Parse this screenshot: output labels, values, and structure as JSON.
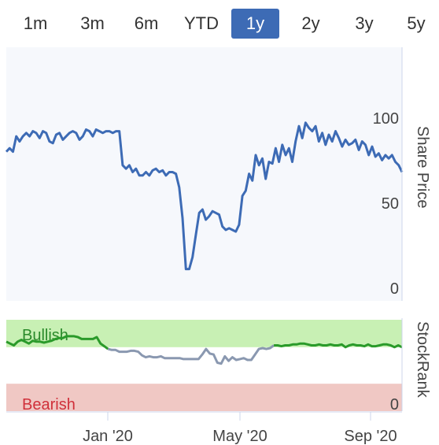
{
  "range_tabs": [
    {
      "label": "1m",
      "active": false
    },
    {
      "label": "3m",
      "active": false
    },
    {
      "label": "6m",
      "active": false
    },
    {
      "label": "YTD",
      "active": false
    },
    {
      "label": "1y",
      "active": true
    },
    {
      "label": "2y",
      "active": false
    },
    {
      "label": "3y",
      "active": false
    },
    {
      "label": "5y",
      "active": false
    }
  ],
  "colors": {
    "accent": "#3d6bb5",
    "price_line": "#3d6bb5",
    "bullish_band": "#c8f0b4",
    "bearish_band": "#f0c8c4",
    "bullish_line": "#2a9a2a",
    "neutral_line": "#8a98b0",
    "bearish_text": "#d0303a",
    "bullish_text": "#2a8a2a"
  },
  "chart_data": [
    {
      "type": "line",
      "ylabel": "Share Price",
      "ylim": [
        0,
        100
      ],
      "yticks": [
        "100",
        "50",
        "0"
      ],
      "series": [
        {
          "values": [
            84,
            86,
            84,
            93,
            90,
            93,
            95,
            93,
            96,
            95,
            92,
            96,
            95,
            90,
            89,
            94,
            95,
            91,
            93,
            95,
            96,
            95,
            91,
            93,
            97,
            96,
            93,
            97,
            96,
            95,
            96,
            96,
            95,
            96,
            96,
            76,
            74,
            76,
            72,
            74,
            70,
            70,
            72,
            70,
            73,
            74,
            72,
            73,
            70,
            72,
            72,
            71,
            63,
            45,
            15,
            15,
            22,
            35,
            48,
            50,
            44,
            46,
            49,
            48,
            47,
            40,
            38,
            39,
            38,
            37,
            41,
            58,
            61,
            71,
            67,
            82,
            76,
            80,
            68,
            78,
            77,
            86,
            78,
            88,
            82,
            86,
            78,
            90,
            99,
            92,
            101,
            98,
            96,
            99,
            90,
            95,
            88,
            94,
            90,
            96,
            92,
            87,
            91,
            88,
            89,
            91,
            85,
            90,
            88,
            82,
            87,
            81,
            83,
            79,
            82,
            80,
            82,
            78,
            76,
            72
          ]
        }
      ]
    },
    {
      "type": "line",
      "ylabel": "StockRank",
      "ylim": [
        0,
        100
      ],
      "yticks": [
        "0"
      ],
      "bands": [
        {
          "label": "Bullish",
          "from": 70,
          "to": 100
        },
        {
          "label": "Bearish",
          "from": 0,
          "to": 30
        }
      ],
      "xticks": [
        "Jan '20",
        "May '20",
        "Sep '20"
      ],
      "series": [
        {
          "values": [
            76,
            74,
            72,
            76,
            78,
            76,
            74,
            77,
            76,
            76,
            75,
            76,
            77,
            79,
            80,
            80,
            82,
            82,
            82,
            81,
            79,
            79,
            79,
            79,
            81,
            74,
            71,
            68,
            67,
            67,
            65,
            65,
            65,
            66,
            66,
            65,
            61,
            59,
            60,
            59,
            59,
            60,
            58,
            58,
            58,
            58,
            58,
            57,
            57,
            57,
            57,
            57,
            62,
            68,
            63,
            62,
            53,
            52,
            60,
            55,
            59,
            56,
            57,
            58,
            56,
            56,
            62,
            68,
            69,
            68,
            69,
            72,
            72,
            71,
            72,
            72,
            73,
            73,
            74,
            74,
            73,
            72,
            72,
            73,
            72,
            72,
            73,
            72,
            72,
            73,
            70,
            72,
            73,
            72,
            72,
            71,
            73,
            71,
            71,
            72,
            73,
            73,
            72,
            70,
            72,
            70
          ]
        }
      ]
    }
  ]
}
